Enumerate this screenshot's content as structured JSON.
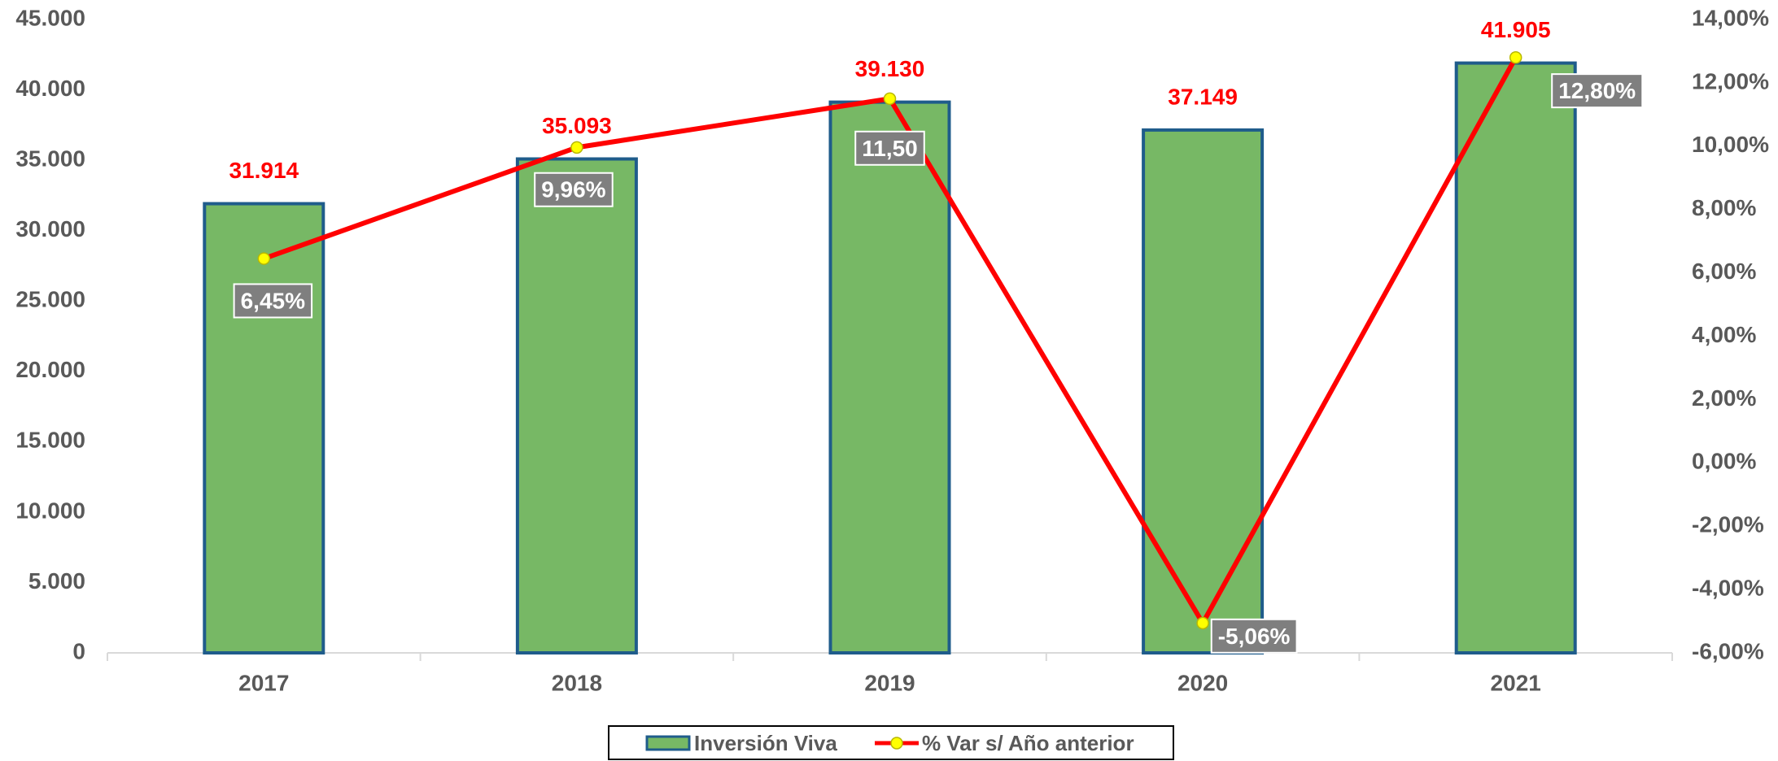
{
  "chart_data": {
    "type": "bar-line",
    "categories": [
      "2017",
      "2018",
      "2019",
      "2020",
      "2021"
    ],
    "series": [
      {
        "name": "Inversión Viva",
        "type": "bar",
        "color": "#77b865",
        "values": [
          31914,
          35093,
          39130,
          37149,
          41905
        ],
        "value_labels": [
          "31.914",
          "35.093",
          "39.130",
          "37.149",
          "41.905"
        ]
      },
      {
        "name": "% Var s/ Año anterior",
        "type": "line",
        "axis": "y2",
        "color": "#ff0000",
        "values": [
          6.45,
          9.96,
          11.5,
          -5.06,
          12.8
        ],
        "value_labels": [
          "6,45%",
          "9,96%",
          "11,50",
          "-5,06%",
          "12,80%"
        ]
      }
    ],
    "ylim": [
      0,
      45000
    ],
    "yticks": [
      0,
      {
        "value": 5000,
        "label": "5.000"
      },
      {
        "value": 10000,
        "label": "10.000"
      },
      {
        "value": 15000,
        "label": "15.000"
      },
      {
        "value": 20000,
        "label": "20.000"
      },
      {
        "value": 25000,
        "label": "25.000"
      },
      {
        "value": 30000,
        "label": "30.000"
      },
      {
        "value": 35000,
        "label": "35.000"
      },
      {
        "value": 40000,
        "label": "40.000"
      },
      {
        "value": 45000,
        "label": "45.000"
      }
    ],
    "y2lim": [
      -6,
      14
    ],
    "y2ticks": [
      {
        "value": -6,
        "label": "-6,00%"
      },
      {
        "value": -4,
        "label": "-4,00%"
      },
      {
        "value": -2,
        "label": "-2,00%"
      },
      {
        "value": 0,
        "label": "0,00%"
      },
      {
        "value": 2,
        "label": "2,00%"
      },
      {
        "value": 4,
        "label": "4,00%"
      },
      {
        "value": 6,
        "label": "6,00%"
      },
      {
        "value": 8,
        "label": "8,00%"
      },
      {
        "value": 10,
        "label": "10,00%"
      },
      {
        "value": 12,
        "label": "12,00%"
      },
      {
        "value": 14,
        "label": "14,00%"
      }
    ],
    "grid": false,
    "legend": "bottom"
  }
}
